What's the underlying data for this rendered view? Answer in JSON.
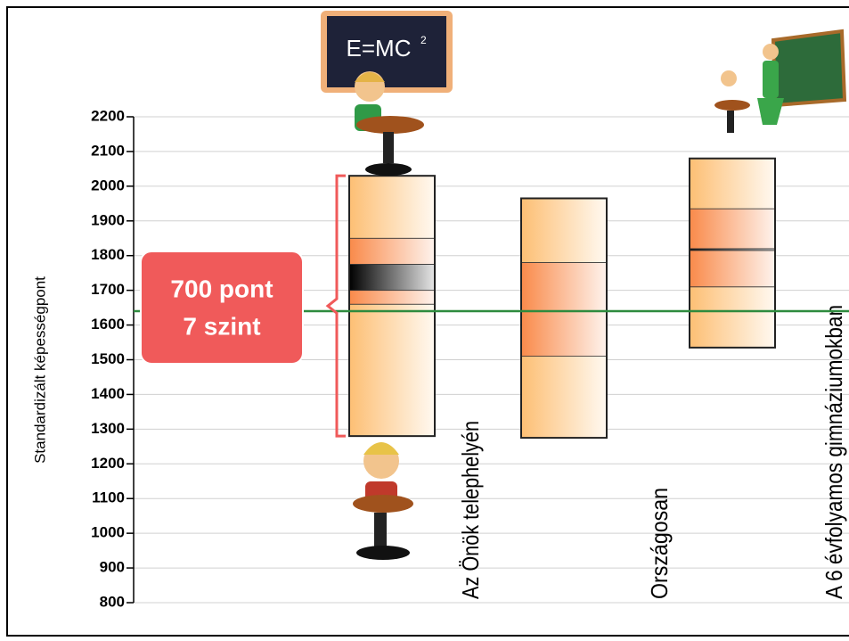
{
  "chart_data": {
    "type": "band-box",
    "y_label": "Standardizált képességpont",
    "ylim": [
      800,
      2200
    ],
    "yticks": [
      800,
      900,
      1000,
      1100,
      1200,
      1300,
      1400,
      1500,
      1600,
      1700,
      1800,
      1900,
      2000,
      2100,
      2200
    ],
    "grid": true,
    "categories": [
      "Az Önök telephelyén",
      "Országosan",
      "A 6 évfolyamos gimnáziumokban"
    ],
    "boxes": [
      {
        "edges": [
          1280,
          1660,
          1700,
          1775,
          1850,
          2030
        ],
        "colors": [
          "#fdbf74",
          "#f98a4a",
          "#000000",
          "#f98a4a",
          "#fdbf74"
        ]
      },
      {
        "edges": [
          1275,
          1510,
          1780,
          1965
        ],
        "colors": [
          "#fdbf74",
          "#f98a4a",
          "#fdbf74"
        ]
      },
      {
        "edges": [
          1535,
          1710,
          1815,
          1820,
          1935,
          2080
        ],
        "colors": [
          "#fdbf74",
          "#f98a4a",
          "#000000",
          "#f98a4a",
          "#fdbf74"
        ]
      }
    ],
    "reference_line": {
      "value": 1640,
      "color": "#2e8b3e"
    },
    "annotation": {
      "lines": [
        "700 pont",
        "7 szint"
      ],
      "color": "#f05a5a"
    },
    "board": {
      "formula": "E=MC",
      "exponent": "2"
    }
  }
}
